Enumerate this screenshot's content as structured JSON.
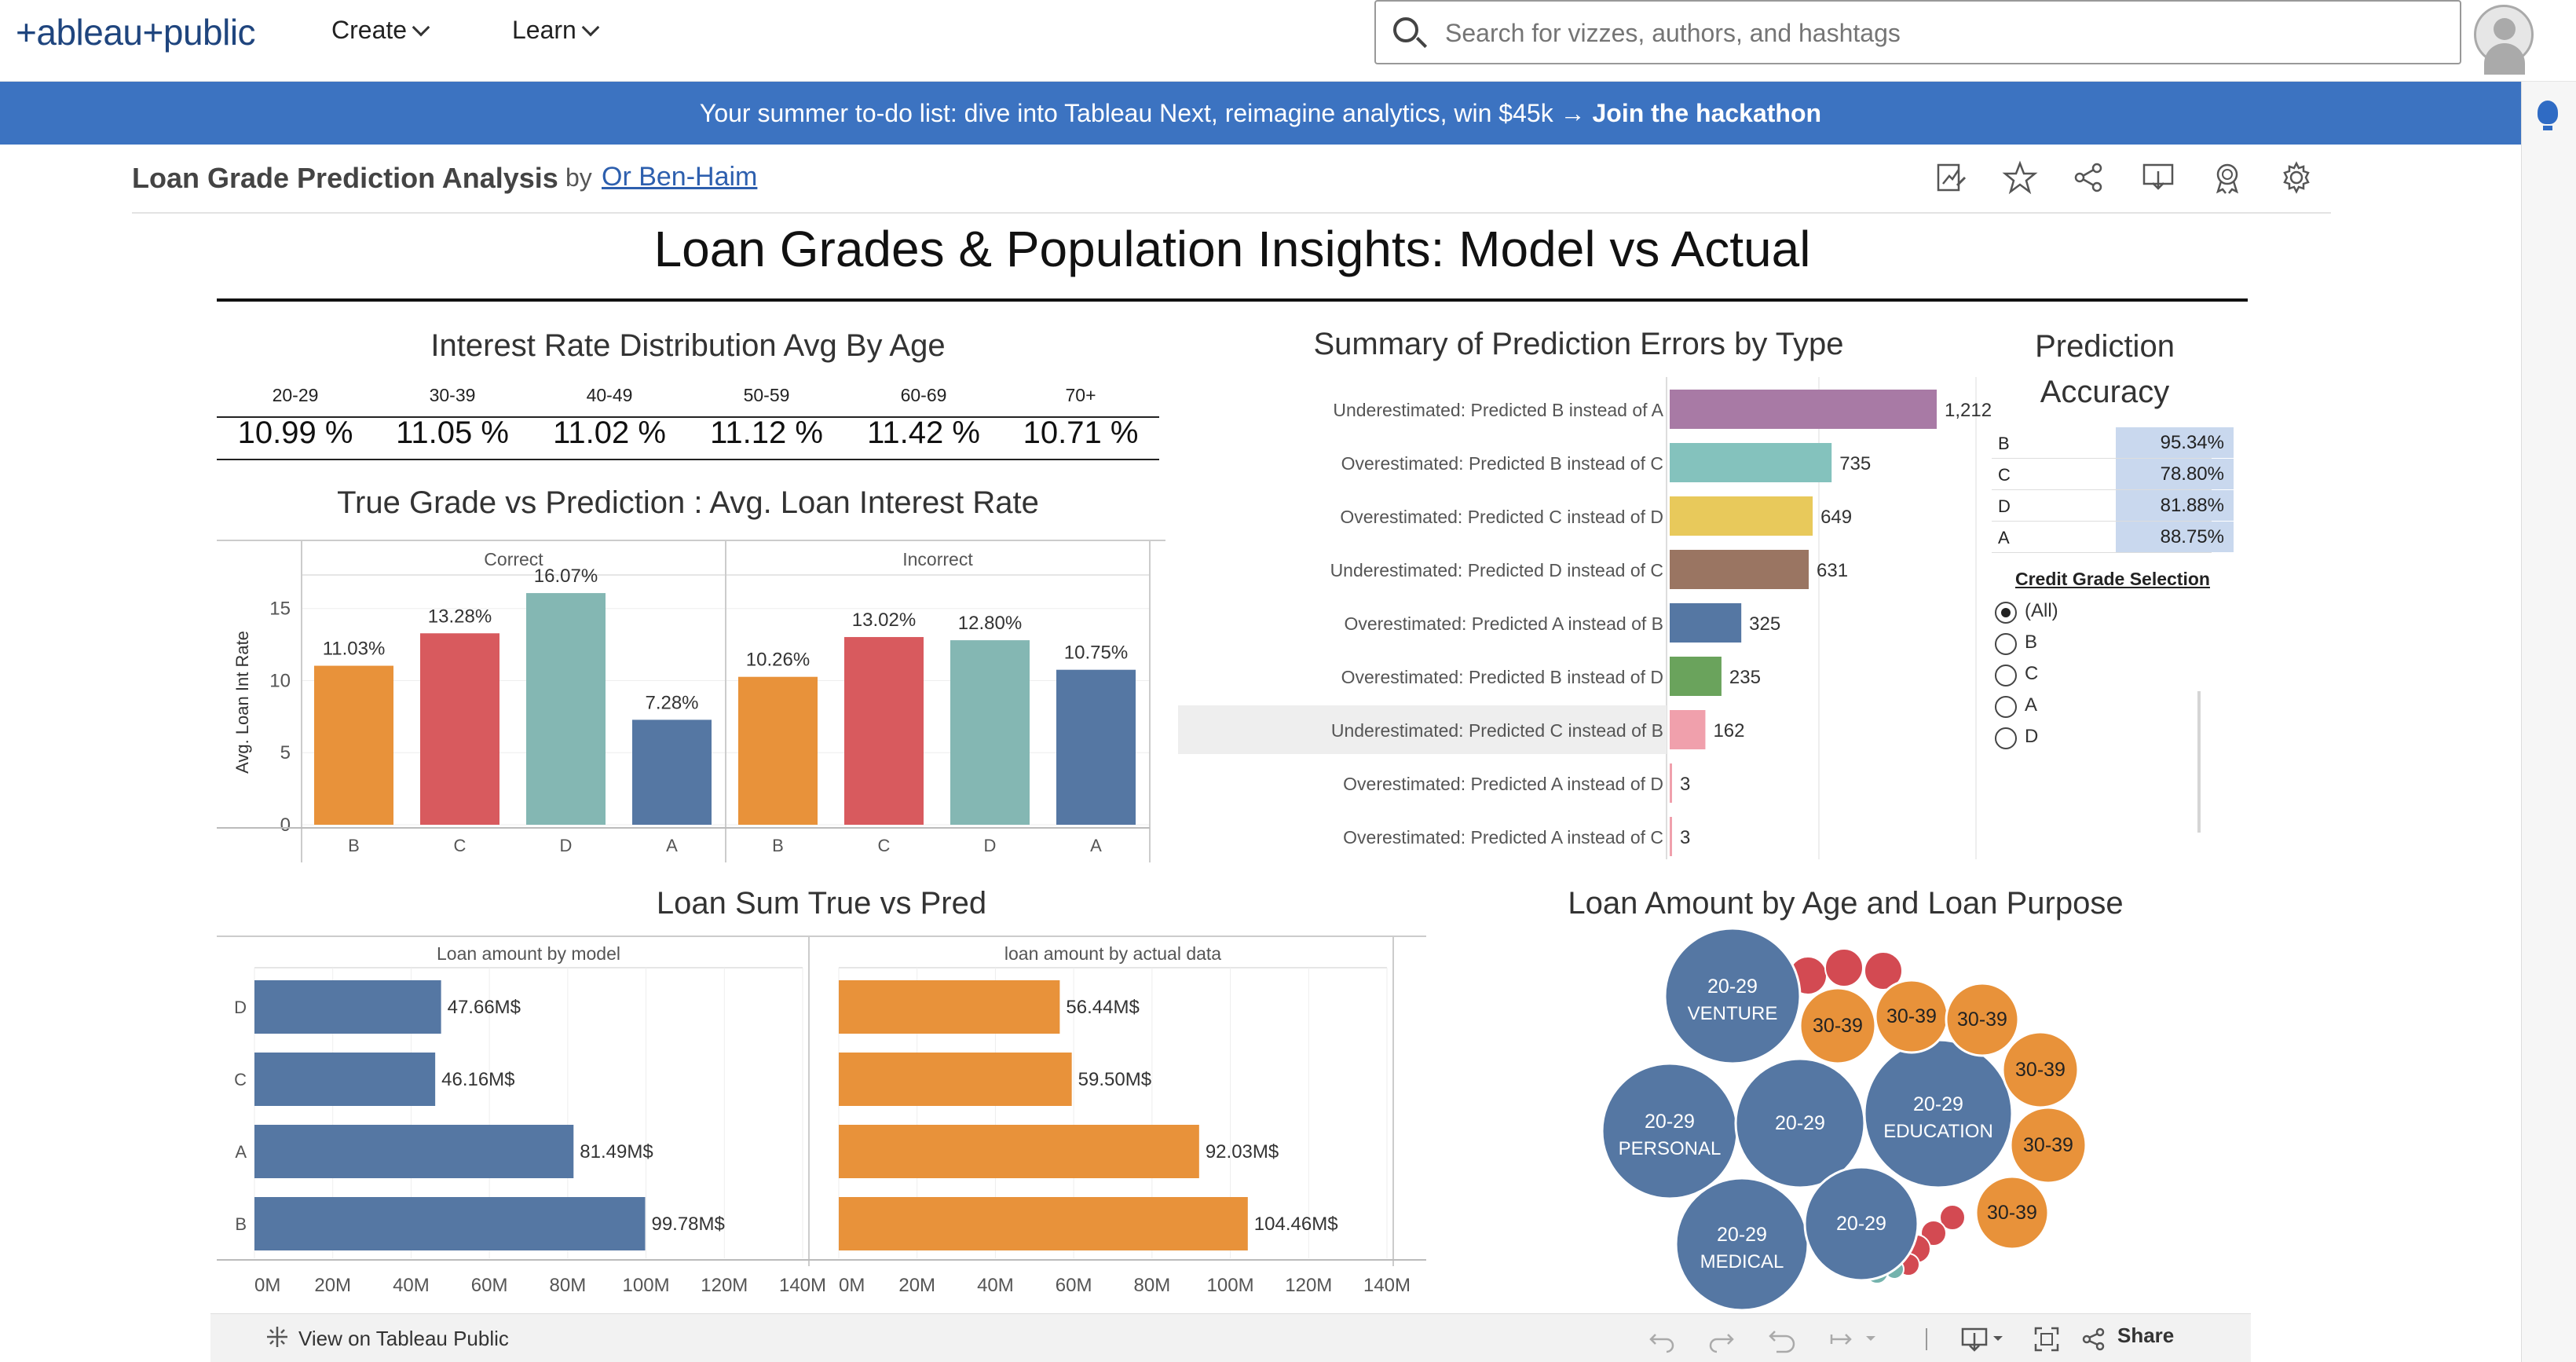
{
  "header": {
    "logo_text": "+ableau+public",
    "nav": [
      {
        "label": "Create"
      },
      {
        "label": "Learn"
      }
    ],
    "search_placeholder": "Search for vizzes, authors, and hashtags"
  },
  "banner": {
    "text": "Your summer to-do list: dive into Tableau Next, reimagine analytics, win $45k → ",
    "link": "Join the hackathon"
  },
  "viz": {
    "name": "Loan Grade Prediction Analysis",
    "by": "by",
    "author": "Or Ben-Haim",
    "toolbar_icons": [
      "edit-icon",
      "star-icon",
      "share-nodes-icon",
      "download-icon",
      "badge-icon",
      "gear-icon"
    ]
  },
  "dashboard": {
    "title": "Loan Grades & Population Insights: Model vs Actual",
    "interest_title": "Interest Rate Distribution  Avg By Age",
    "age_rates": [
      {
        "age": "20-29",
        "rate": "10.99 %"
      },
      {
        "age": "30-39",
        "rate": "11.05 %"
      },
      {
        "age": "40-49",
        "rate": "11.02 %"
      },
      {
        "age": "50-59",
        "rate": "11.12 %"
      },
      {
        "age": "60-69",
        "rate": "11.42 %"
      },
      {
        "age": "70+",
        "rate": "10.71 %"
      }
    ],
    "grade_chart_title": "True Grade vs Prediction : Avg. Loan Interest Rate",
    "errors_title": "Summary of Prediction Errors by Type",
    "loan_sum_title": "Loan Sum True vs Pred",
    "bubble_title": "Loan Amount by Age and Loan Purpose",
    "accuracy": {
      "title_line1": "Prediction",
      "title_line2": "Accuracy",
      "rows": [
        {
          "grade": "B",
          "value": "95.34%"
        },
        {
          "grade": "C",
          "value": "78.80%"
        },
        {
          "grade": "D",
          "value": "81.88%"
        },
        {
          "grade": "A",
          "value": "88.75%"
        }
      ]
    },
    "filter": {
      "title": "Credit Grade Selection",
      "options": [
        "(All)",
        "B",
        "C",
        "A",
        "D"
      ],
      "selected": "(All)"
    }
  },
  "footer": {
    "view_on": "View on Tableau Public",
    "share": "Share"
  },
  "chart_data": [
    {
      "type": "bar",
      "title": "True Grade vs Prediction : Avg. Loan Interest Rate",
      "ylabel": "Avg. Loan Int Rate",
      "ylim": [
        0,
        17
      ],
      "yticks": [
        0,
        5,
        10,
        15
      ],
      "panels": [
        "Correct",
        "Incorrect"
      ],
      "categories": [
        "B",
        "C",
        "D",
        "A"
      ],
      "colors": [
        "#e8923a",
        "#d85a5e",
        "#84b7b3",
        "#5577a3"
      ],
      "series": [
        {
          "name": "Correct",
          "values": [
            11.03,
            13.28,
            16.07,
            7.28
          ],
          "labels": [
            "11.03%",
            "13.28%",
            "16.07%",
            "7.28%"
          ]
        },
        {
          "name": "Incorrect",
          "values": [
            10.26,
            13.02,
            12.8,
            10.75
          ],
          "labels": [
            "10.26%",
            "13.02%",
            "12.80%",
            "10.75%"
          ]
        }
      ]
    },
    {
      "type": "bar",
      "orientation": "horizontal",
      "title": "Summary of Prediction Errors by Type",
      "categories": [
        "Underestimated: Predicted B instead of A",
        "Overestimated: Predicted B instead of C",
        "Overestimated: Predicted C instead of D",
        "Underestimated: Predicted D instead of C",
        "Overestimated: Predicted A instead of B",
        "Overestimated: Predicted B instead of D",
        "Underestimated: Predicted C instead of B",
        "Overestimated: Predicted A instead of D",
        "Overestimated: Predicted A instead of C"
      ],
      "values": [
        1212,
        735,
        649,
        631,
        325,
        235,
        162,
        3,
        3
      ],
      "labels": [
        "1,212",
        "735",
        "649",
        "631",
        "325",
        "235",
        "162",
        "3",
        "3"
      ],
      "colors": [
        "#a87aa5",
        "#84c2bd",
        "#e8c95b",
        "#9a7562",
        "#5577a3",
        "#6aa35c",
        "#f0a0ac",
        "#f0a0ac",
        "#f0a0ac"
      ],
      "xlim": [
        0,
        1400
      ],
      "highlighted": "Underestimated: Predicted C instead of B"
    },
    {
      "type": "bar",
      "orientation": "horizontal",
      "title": "Loan Sum True vs Pred",
      "categories": [
        "D",
        "C",
        "A",
        "B"
      ],
      "panels": [
        "Loan amount by model",
        "loan amount by actual data"
      ],
      "xticks": [
        "0M",
        "20M",
        "40M",
        "60M",
        "80M",
        "100M",
        "120M",
        "140M"
      ],
      "xlim": [
        0,
        140
      ],
      "series": [
        {
          "name": "Loan amount by model",
          "color": "#5577a3",
          "values": [
            47.66,
            46.16,
            81.49,
            99.78
          ],
          "labels": [
            "47.66M$",
            "46.16M$",
            "81.49M$",
            "99.78M$"
          ]
        },
        {
          "name": "loan amount by actual data",
          "color": "#e8923a",
          "values": [
            56.44,
            59.5,
            92.03,
            104.46
          ],
          "labels": [
            "56.44M$",
            "59.50M$",
            "92.03M$",
            "104.46M$"
          ]
        }
      ]
    },
    {
      "type": "bubble",
      "title": "Loan Amount by Age and Loan Purpose",
      "bubbles": [
        {
          "label1": "20-29",
          "label2": "VENTURE",
          "color": "#5577a3"
        },
        {
          "label1": "20-29",
          "label2": "PERSONAL",
          "color": "#5577a3"
        },
        {
          "label1": "20-29",
          "label2": "",
          "color": "#5577a3"
        },
        {
          "label1": "20-29",
          "label2": "EDUCATION",
          "color": "#5577a3"
        },
        {
          "label1": "20-29",
          "label2": "MEDICAL",
          "color": "#5577a3"
        },
        {
          "label1": "20-29",
          "label2": "",
          "color": "#5577a3"
        },
        {
          "label1": "30-39",
          "label2": "",
          "color": "#e8923a"
        },
        {
          "label1": "30-39",
          "label2": "",
          "color": "#e8923a"
        },
        {
          "label1": "30-39",
          "label2": "",
          "color": "#e8923a"
        },
        {
          "label1": "30-39",
          "label2": "",
          "color": "#e8923a"
        },
        {
          "label1": "30-39",
          "label2": "",
          "color": "#e8923a"
        },
        {
          "label1": "30-39",
          "label2": "",
          "color": "#e8923a"
        }
      ]
    }
  ]
}
